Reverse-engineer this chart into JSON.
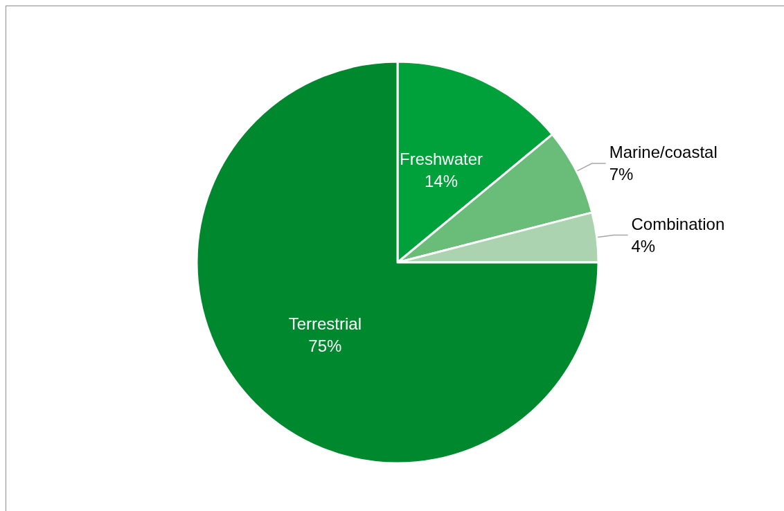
{
  "chart_data": {
    "type": "pie",
    "categories": [
      "Freshwater",
      "Marine/coastal",
      "Combination",
      "Terrestrial"
    ],
    "values": [
      14,
      7,
      4,
      75
    ],
    "value_labels": [
      "14%",
      "7%",
      "4%",
      "75%"
    ],
    "colors": [
      "#00a13a",
      "#6abd78",
      "#acd3b0",
      "#00882f"
    ],
    "legend": false
  }
}
